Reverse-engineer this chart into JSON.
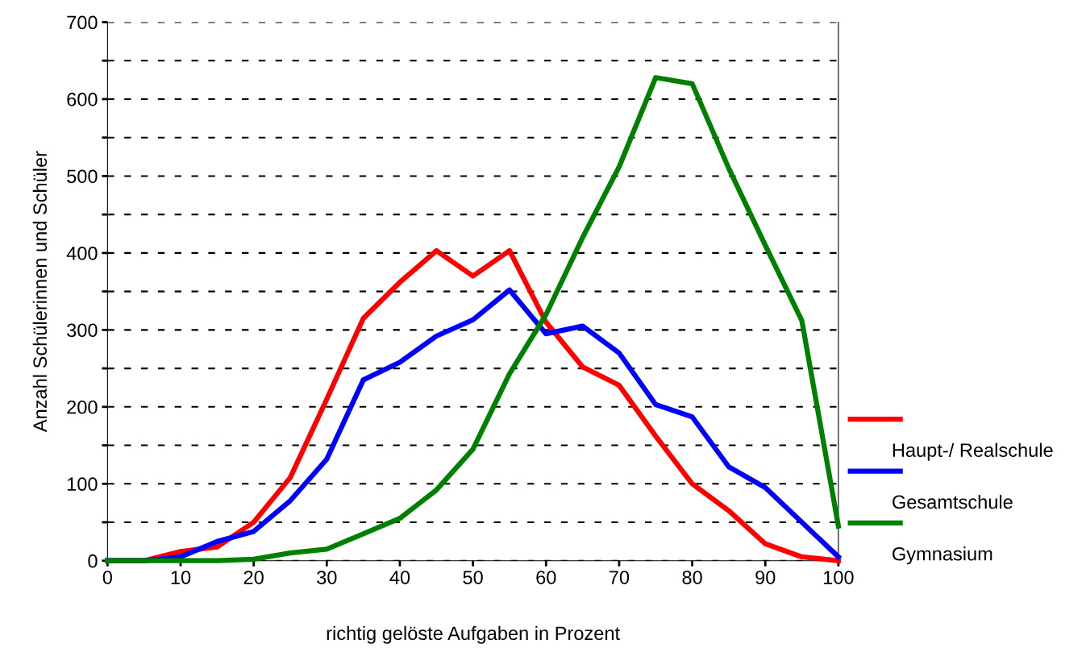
{
  "chart_data": {
    "type": "line",
    "xlabel": "richtig gelöste Aufgaben in Prozent",
    "ylabel": "Anzahl Schülerinnen und Schüler",
    "x": [
      0,
      5,
      10,
      15,
      20,
      25,
      30,
      35,
      40,
      45,
      50,
      55,
      60,
      65,
      70,
      75,
      80,
      85,
      90,
      95,
      100
    ],
    "series": [
      {
        "name": "Haupt-/ Realschule",
        "color": "#ff0000",
        "values": [
          0,
          0,
          12,
          18,
          50,
          108,
          210,
          315,
          362,
          403,
          370,
          403,
          310,
          252,
          228,
          162,
          100,
          65,
          22,
          5,
          0
        ]
      },
      {
        "name": "Gesamtschule",
        "color": "#0000ff",
        "values": [
          0,
          0,
          5,
          25,
          38,
          78,
          132,
          235,
          258,
          292,
          313,
          352,
          295,
          305,
          270,
          203,
          187,
          122,
          95,
          50,
          5
        ]
      },
      {
        "name": "Gymnasium",
        "color": "#008000",
        "values": [
          0,
          0,
          0,
          0,
          2,
          10,
          15,
          35,
          55,
          92,
          145,
          243,
          320,
          420,
          512,
          628,
          620,
          510,
          410,
          312,
          45
        ]
      }
    ],
    "xlim": [
      0,
      100
    ],
    "xticks": [
      0,
      10,
      20,
      30,
      40,
      50,
      60,
      70,
      80,
      90,
      100
    ],
    "ylim": [
      0,
      700
    ],
    "yticks": [
      0,
      {
        "value": 50,
        "label": null
      },
      100,
      {
        "value": 150,
        "label": null
      },
      200,
      {
        "value": 250,
        "label": null
      },
      300,
      {
        "value": 350,
        "label": null
      },
      400,
      {
        "value": 450,
        "label": null
      },
      500,
      {
        "value": 550,
        "label": null
      },
      600,
      {
        "value": 650,
        "label": null
      },
      700
    ],
    "grid": "y",
    "legend": "right",
    "marker": "none",
    "line_style": "solid"
  }
}
